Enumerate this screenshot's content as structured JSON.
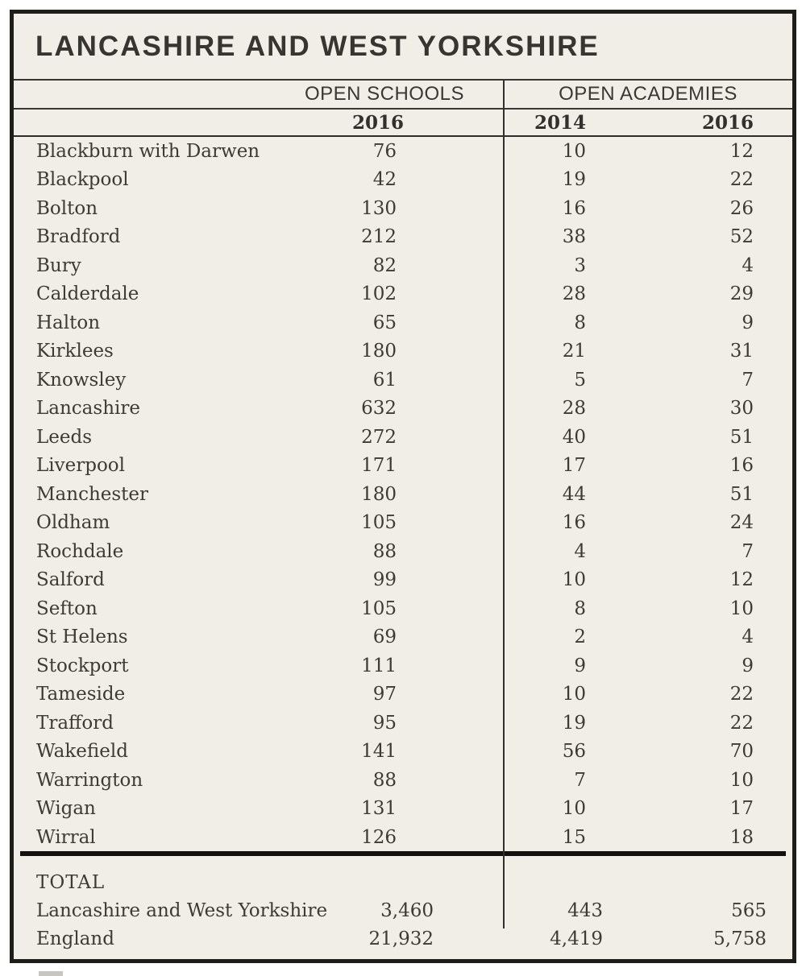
{
  "title": "LANCASHIRE AND WEST YORKSHIRE",
  "columns": {
    "group_headers": [
      "OPEN SCHOOLS",
      "OPEN ACADEMIES"
    ],
    "year_headers": [
      "2016",
      "2014",
      "2016"
    ]
  },
  "rows": [
    {
      "name": "Blackburn with Darwen",
      "schools_2016": "76",
      "academies_2014": "10",
      "academies_2016": "12"
    },
    {
      "name": "Blackpool",
      "schools_2016": "42",
      "academies_2014": "19",
      "academies_2016": "22"
    },
    {
      "name": "Bolton",
      "schools_2016": "130",
      "academies_2014": "16",
      "academies_2016": "26"
    },
    {
      "name": "Bradford",
      "schools_2016": "212",
      "academies_2014": "38",
      "academies_2016": "52"
    },
    {
      "name": "Bury",
      "schools_2016": "82",
      "academies_2014": "3",
      "academies_2016": "4"
    },
    {
      "name": "Calderdale",
      "schools_2016": "102",
      "academies_2014": "28",
      "academies_2016": "29"
    },
    {
      "name": "Halton",
      "schools_2016": "65",
      "academies_2014": "8",
      "academies_2016": "9"
    },
    {
      "name": "Kirklees",
      "schools_2016": "180",
      "academies_2014": "21",
      "academies_2016": "31"
    },
    {
      "name": "Knowsley",
      "schools_2016": "61",
      "academies_2014": "5",
      "academies_2016": "7"
    },
    {
      "name": "Lancashire",
      "schools_2016": "632",
      "academies_2014": "28",
      "academies_2016": "30"
    },
    {
      "name": "Leeds",
      "schools_2016": "272",
      "academies_2014": "40",
      "academies_2016": "51"
    },
    {
      "name": "Liverpool",
      "schools_2016": "171",
      "academies_2014": "17",
      "academies_2016": "16"
    },
    {
      "name": "Manchester",
      "schools_2016": "180",
      "academies_2014": "44",
      "academies_2016": "51"
    },
    {
      "name": "Oldham",
      "schools_2016": "105",
      "academies_2014": "16",
      "academies_2016": "24"
    },
    {
      "name": "Rochdale",
      "schools_2016": "88",
      "academies_2014": "4",
      "academies_2016": "7"
    },
    {
      "name": "Salford",
      "schools_2016": "99",
      "academies_2014": "10",
      "academies_2016": "12"
    },
    {
      "name": "Sefton",
      "schools_2016": "105",
      "academies_2014": "8",
      "academies_2016": "10"
    },
    {
      "name": "St Helens",
      "schools_2016": "69",
      "academies_2014": "2",
      "academies_2016": "4"
    },
    {
      "name": "Stockport",
      "schools_2016": "111",
      "academies_2014": "9",
      "academies_2016": "9"
    },
    {
      "name": "Tameside",
      "schools_2016": "97",
      "academies_2014": "10",
      "academies_2016": "22"
    },
    {
      "name": "Trafford",
      "schools_2016": "95",
      "academies_2014": "19",
      "academies_2016": "22"
    },
    {
      "name": "Wakefield",
      "schools_2016": "141",
      "academies_2014": "56",
      "academies_2016": "70"
    },
    {
      "name": "Warrington",
      "schools_2016": "88",
      "academies_2014": "7",
      "academies_2016": "10"
    },
    {
      "name": "Wigan",
      "schools_2016": "131",
      "academies_2014": "10",
      "academies_2016": "17"
    },
    {
      "name": "Wirral",
      "schools_2016": "126",
      "academies_2014": "15",
      "academies_2016": "18"
    }
  ],
  "totals": {
    "label": "TOTAL",
    "rows": [
      {
        "name": "Lancashire and West Yorkshire",
        "schools_2016": "3,460",
        "academies_2014": "443",
        "academies_2016": "565"
      },
      {
        "name": "England",
        "schools_2016": "21,932",
        "academies_2014": "4,419",
        "academies_2016": "5,758"
      }
    ]
  },
  "colors": {
    "table_background": "#f1eee8",
    "border": "#1f1d1a",
    "text": "#3e3a34"
  }
}
